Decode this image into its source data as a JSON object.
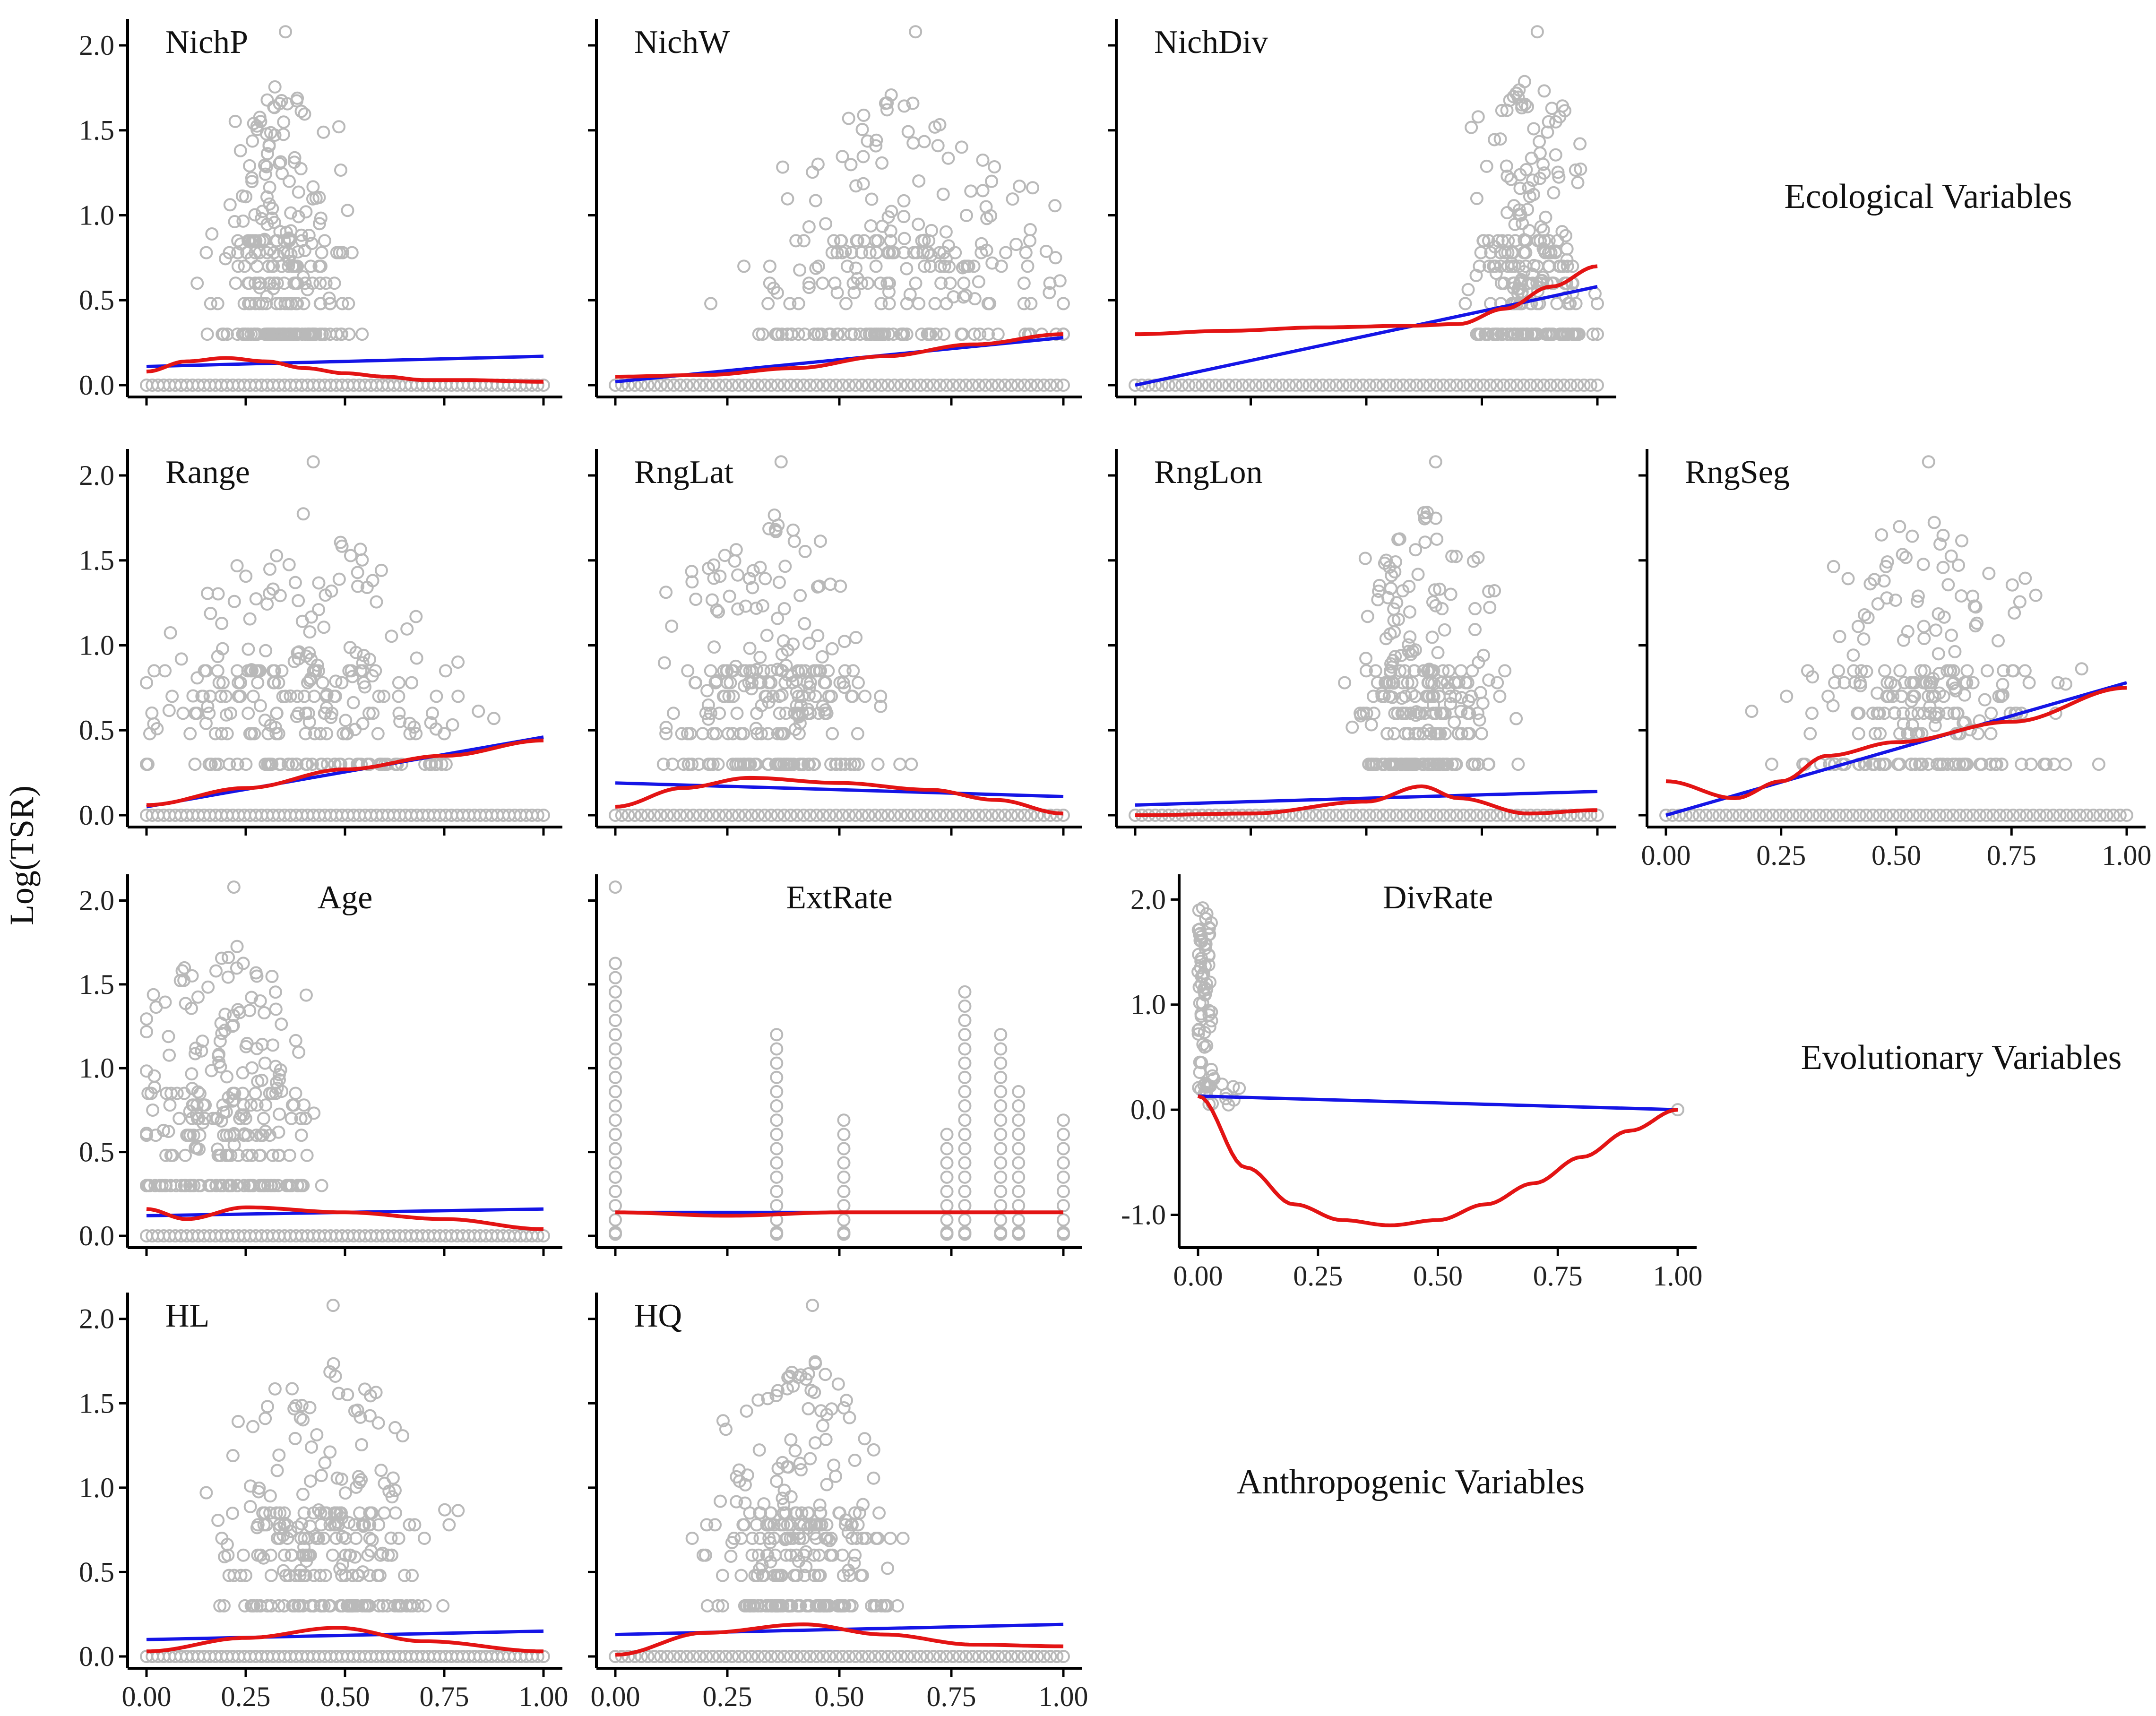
{
  "figure": {
    "y_axis_label": "Log(TSR)",
    "group_labels": [
      "Ecological Variables",
      "Evolutionary Variables",
      "Anthropogenic Variables"
    ]
  },
  "chart_data": [
    {
      "type": "scatter",
      "id": "nichp",
      "title": "NichP",
      "xlim": [
        0,
        1
      ],
      "ylim": [
        0,
        2.1
      ],
      "yticks": [
        "0.0",
        "0.5",
        "1.0",
        "1.5",
        "2.0"
      ],
      "xticks": [],
      "cloud": {
        "x_center": 0.33,
        "x_spread": 0.13,
        "top": 1.8,
        "n": 220
      },
      "linear_fit": {
        "x": [
          0,
          1
        ],
        "y": [
          0.11,
          0.17
        ]
      },
      "smooth_fit": {
        "x": [
          0,
          0.1,
          0.2,
          0.3,
          0.4,
          0.5,
          0.6,
          0.7,
          0.8,
          1.0
        ],
        "y": [
          0.08,
          0.14,
          0.16,
          0.14,
          0.1,
          0.07,
          0.05,
          0.03,
          0.03,
          0.02
        ]
      },
      "colors": {
        "points": "#b9b9b9",
        "linear": "#1515e6",
        "smooth": "#e31414"
      }
    },
    {
      "type": "scatter",
      "id": "nichw",
      "title": "NichW",
      "xlim": [
        0,
        1
      ],
      "ylim": [
        0,
        2.1
      ],
      "yticks": [],
      "xticks": [],
      "cloud": {
        "x_center": 0.65,
        "x_spread": 0.28,
        "top": 1.8,
        "n": 200
      },
      "linear_fit": {
        "x": [
          0,
          1
        ],
        "y": [
          0.02,
          0.28
        ]
      },
      "smooth_fit": {
        "x": [
          0,
          0.2,
          0.4,
          0.6,
          0.8,
          1.0
        ],
        "y": [
          0.05,
          0.06,
          0.1,
          0.17,
          0.24,
          0.3
        ]
      },
      "colors": {
        "points": "#b9b9b9",
        "linear": "#1515e6",
        "smooth": "#e31414"
      }
    },
    {
      "type": "scatter",
      "id": "nichdiv",
      "title": "NichDiv",
      "xlim": [
        0,
        1
      ],
      "ylim": [
        0,
        2.1
      ],
      "yticks": [],
      "xticks": [],
      "cloud": {
        "x_center": 0.85,
        "x_spread": 0.1,
        "top": 1.8,
        "n": 200
      },
      "linear_fit": {
        "x": [
          0,
          1
        ],
        "y": [
          0.0,
          0.58
        ]
      },
      "smooth_fit": {
        "x": [
          0,
          0.2,
          0.4,
          0.6,
          0.7,
          0.8,
          0.9,
          1.0
        ],
        "y": [
          0.3,
          0.32,
          0.34,
          0.35,
          0.36,
          0.45,
          0.58,
          0.7
        ]
      },
      "colors": {
        "points": "#b9b9b9",
        "linear": "#1515e6",
        "smooth": "#e31414"
      }
    },
    {
      "type": "scatter",
      "id": "range",
      "title": "Range",
      "xlim": [
        0,
        1
      ],
      "ylim": [
        0,
        2.1
      ],
      "yticks": [
        "0.0",
        "0.5",
        "1.0",
        "1.5",
        "2.0"
      ],
      "xticks": [],
      "cloud": {
        "x_center": 0.4,
        "x_spread": 0.3,
        "top": 1.8,
        "n": 220
      },
      "linear_fit": {
        "x": [
          0,
          1
        ],
        "y": [
          0.05,
          0.46
        ]
      },
      "smooth_fit": {
        "x": [
          0,
          0.25,
          0.5,
          0.75,
          1.0
        ],
        "y": [
          0.06,
          0.16,
          0.27,
          0.35,
          0.44
        ]
      },
      "colors": {
        "points": "#b9b9b9",
        "linear": "#1515e6",
        "smooth": "#e31414"
      }
    },
    {
      "type": "scatter",
      "id": "rnglat",
      "title": "RngLat",
      "xlim": [
        0,
        1
      ],
      "ylim": [
        0,
        2.1
      ],
      "yticks": [],
      "xticks": [],
      "cloud": {
        "x_center": 0.35,
        "x_spread": 0.17,
        "top": 1.8,
        "n": 220
      },
      "linear_fit": {
        "x": [
          0,
          1
        ],
        "y": [
          0.19,
          0.11
        ]
      },
      "smooth_fit": {
        "x": [
          0,
          0.15,
          0.3,
          0.5,
          0.7,
          0.85,
          1.0
        ],
        "y": [
          0.05,
          0.16,
          0.22,
          0.19,
          0.15,
          0.09,
          0.01
        ]
      },
      "colors": {
        "points": "#b9b9b9",
        "linear": "#1515e6",
        "smooth": "#e31414"
      }
    },
    {
      "type": "scatter",
      "id": "rnglon",
      "title": "RngLon",
      "xlim": [
        0,
        1
      ],
      "ylim": [
        0,
        2.1
      ],
      "yticks": [],
      "xticks": [],
      "cloud": {
        "x_center": 0.63,
        "x_spread": 0.12,
        "top": 1.8,
        "n": 220
      },
      "linear_fit": {
        "x": [
          0,
          1
        ],
        "y": [
          0.06,
          0.14
        ]
      },
      "smooth_fit": {
        "x": [
          0,
          0.25,
          0.5,
          0.62,
          0.7,
          0.85,
          1.0
        ],
        "y": [
          0.0,
          0.01,
          0.08,
          0.17,
          0.1,
          0.01,
          0.03
        ]
      },
      "colors": {
        "points": "#b9b9b9",
        "linear": "#1515e6",
        "smooth": "#e31414"
      }
    },
    {
      "type": "scatter",
      "id": "rngseg",
      "title": "RngSeg",
      "xlim": [
        0,
        1
      ],
      "ylim": [
        0,
        2.1
      ],
      "yticks": [],
      "xticks": [
        "0.00",
        "0.25",
        "0.50",
        "0.75",
        "1.00"
      ],
      "cloud": {
        "x_center": 0.55,
        "x_spread": 0.22,
        "top": 1.8,
        "n": 200
      },
      "linear_fit": {
        "x": [
          0,
          1
        ],
        "y": [
          0.0,
          0.78
        ]
      },
      "smooth_fit": {
        "x": [
          0,
          0.15,
          0.25,
          0.35,
          0.5,
          0.75,
          1.0
        ],
        "y": [
          0.2,
          0.1,
          0.2,
          0.35,
          0.43,
          0.55,
          0.75
        ]
      },
      "colors": {
        "points": "#b9b9b9",
        "linear": "#1515e6",
        "smooth": "#e31414"
      }
    },
    {
      "type": "scatter",
      "id": "age",
      "title": "Age",
      "xlim": [
        0,
        1
      ],
      "ylim": [
        0,
        2.1
      ],
      "yticks": [
        "0.0",
        "0.5",
        "1.0",
        "1.5",
        "2.0"
      ],
      "xticks": [],
      "cloud": {
        "x_center": 0.2,
        "x_spread": 0.18,
        "top": 1.8,
        "n": 220
      },
      "linear_fit": {
        "x": [
          0,
          1
        ],
        "y": [
          0.12,
          0.16
        ]
      },
      "smooth_fit": {
        "x": [
          0,
          0.1,
          0.25,
          0.5,
          0.75,
          1.0
        ],
        "y": [
          0.16,
          0.1,
          0.17,
          0.14,
          0.1,
          0.04
        ]
      },
      "colors": {
        "points": "#b9b9b9",
        "linear": "#1515e6",
        "smooth": "#e31414"
      }
    },
    {
      "type": "scatter",
      "id": "extrate",
      "title": "ExtRate",
      "xlim": [
        0,
        1
      ],
      "ylim": [
        0,
        2.1
      ],
      "yticks": [],
      "xticks": [],
      "columns": [
        0.0,
        0.36,
        0.51,
        0.74,
        0.78,
        0.86,
        0.9,
        1.0
      ],
      "linear_fit": {
        "x": [
          0,
          1
        ],
        "y": [
          0.14,
          0.14
        ]
      },
      "smooth_fit": {
        "x": [
          0,
          0.25,
          0.5,
          0.75,
          1.0
        ],
        "y": [
          0.14,
          0.12,
          0.14,
          0.14,
          0.14
        ]
      },
      "colors": {
        "points": "#b9b9b9",
        "linear": "#1515e6",
        "smooth": "#e31414"
      }
    },
    {
      "type": "scatter",
      "id": "divrate",
      "title": "DivRate",
      "xlim": [
        0,
        1
      ],
      "ylim": [
        -1.2,
        2.15
      ],
      "yticks": [
        "-1.0",
        "0.0",
        "1.0",
        "2.0"
      ],
      "yticks_values": [
        -1.0,
        0.0,
        1.0,
        2.0
      ],
      "xticks": [
        "0.00",
        "0.25",
        "0.50",
        "0.75",
        "1.00"
      ],
      "linear_fit": {
        "x": [
          0,
          1
        ],
        "y": [
          0.13,
          0.0
        ]
      },
      "smooth_fit": {
        "x": [
          0,
          0.1,
          0.2,
          0.3,
          0.4,
          0.5,
          0.6,
          0.7,
          0.8,
          0.9,
          1.0
        ],
        "y": [
          0.13,
          -0.55,
          -0.9,
          -1.05,
          -1.1,
          -1.05,
          -0.9,
          -0.7,
          -0.45,
          -0.2,
          0.0
        ]
      },
      "colors": {
        "points": "#b9b9b9",
        "linear": "#1515e6",
        "smooth": "#e31414"
      }
    },
    {
      "type": "scatter",
      "id": "hl",
      "title": "HL",
      "xlim": [
        0,
        1
      ],
      "ylim": [
        0,
        2.1
      ],
      "yticks": [
        "0.0",
        "0.5",
        "1.0",
        "1.5",
        "2.0"
      ],
      "xticks": [
        "0.00",
        "0.25",
        "0.50",
        "0.75",
        "1.00"
      ],
      "cloud": {
        "x_center": 0.45,
        "x_spread": 0.22,
        "top": 1.8,
        "n": 220
      },
      "linear_fit": {
        "x": [
          0,
          1
        ],
        "y": [
          0.1,
          0.15
        ]
      },
      "smooth_fit": {
        "x": [
          0,
          0.25,
          0.48,
          0.7,
          1.0
        ],
        "y": [
          0.03,
          0.11,
          0.17,
          0.09,
          0.03
        ]
      },
      "colors": {
        "points": "#b9b9b9",
        "linear": "#1515e6",
        "smooth": "#e31414"
      }
    },
    {
      "type": "scatter",
      "id": "hq",
      "title": "HQ",
      "xlim": [
        0,
        1
      ],
      "ylim": [
        0,
        2.1
      ],
      "yticks": [],
      "xticks": [
        "0.00",
        "0.25",
        "0.50",
        "0.75",
        "1.00"
      ],
      "cloud": {
        "x_center": 0.42,
        "x_spread": 0.16,
        "top": 1.8,
        "n": 220
      },
      "linear_fit": {
        "x": [
          0,
          1
        ],
        "y": [
          0.13,
          0.19
        ]
      },
      "smooth_fit": {
        "x": [
          0,
          0.2,
          0.42,
          0.6,
          0.8,
          1.0
        ],
        "y": [
          0.01,
          0.14,
          0.19,
          0.13,
          0.07,
          0.06
        ]
      },
      "colors": {
        "points": "#b9b9b9",
        "linear": "#1515e6",
        "smooth": "#e31414"
      }
    }
  ]
}
